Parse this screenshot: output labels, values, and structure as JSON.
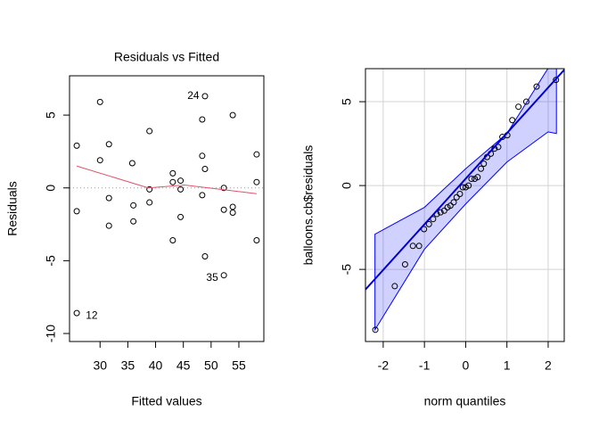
{
  "chart_data": [
    {
      "type": "scatter",
      "title": "Residuals vs Fitted",
      "x_label": "Fitted values",
      "y_label": "Residuals",
      "xlim": [
        24.5,
        59.5
      ],
      "ylim": [
        -10.55,
        7.7
      ],
      "xticks": [
        30,
        35,
        40,
        45,
        50,
        55
      ],
      "yticks": [
        5,
        0,
        -5,
        -10
      ],
      "grid": false,
      "reference_line": 0,
      "series": [
        {
          "type": "scatter",
          "color": "#000000",
          "x": [
            25.8,
            25.8,
            25.8,
            30,
            30,
            31.6,
            31.6,
            31.6,
            35.8,
            36,
            36,
            38.9,
            38.9,
            38.9,
            43.1,
            43.1,
            43.1,
            44.5,
            44.5,
            44.5,
            48.4,
            48.4,
            48.4,
            48.9,
            48.9,
            48.9,
            52.3,
            52.3,
            52.3,
            53.9,
            53.9,
            53.9,
            58.2,
            58.2,
            58.2
          ],
          "values": [
            2.9,
            -1.6,
            -8.6,
            5.9,
            1.9,
            3.0,
            -0.7,
            -2.6,
            1.7,
            -1.2,
            -2.3,
            3.9,
            -0.1,
            -1.0,
            1.0,
            0.4,
            -3.6,
            0.5,
            -0.1,
            -2.0,
            4.7,
            2.2,
            -0.5,
            6.3,
            1.3,
            -4.7,
            0.0,
            -1.5,
            -6.0,
            5.0,
            -1.3,
            -1.7,
            2.3,
            0.4,
            -3.6
          ]
        },
        {
          "type": "line",
          "color": "#df536b",
          "x": [
            25.8,
            38.7,
            45.2,
            58.2
          ],
          "values": [
            1.5,
            0.0,
            0.2,
            -0.4
          ]
        }
      ],
      "annotations": [
        {
          "text": "24",
          "x": 46.8,
          "y": 6.3
        },
        {
          "text": "35",
          "x": 50.2,
          "y": -6.2
        },
        {
          "text": "12",
          "x": 28.5,
          "y": -8.8
        }
      ]
    },
    {
      "type": "scatter",
      "x_label": "norm quantiles",
      "y_label": "balloons.cb$residuals",
      "xlim": [
        -2.43,
        2.39
      ],
      "ylim": [
        -9.3,
        6.97
      ],
      "xticks": [
        -2,
        -1,
        0,
        1,
        2
      ],
      "yticks": [
        5,
        0,
        -5
      ],
      "grid": true,
      "band": {
        "color": "#0000ff",
        "x": [
          -2.2,
          -1,
          0,
          1,
          2,
          2.2
        ],
        "upper": [
          -2.9,
          -1.3,
          1.0,
          3.1,
          7.0,
          8.5
        ],
        "lower": [
          -8.6,
          -3.8,
          -1.1,
          1.4,
          3.2,
          3.1
        ]
      },
      "series": [
        {
          "type": "scatter",
          "color": "#000000",
          "x": [
            -2.19,
            -1.72,
            -1.47,
            -1.28,
            -1.13,
            -1.01,
            -0.89,
            -0.79,
            -0.7,
            -0.61,
            -0.52,
            -0.44,
            -0.37,
            -0.29,
            -0.22,
            -0.14,
            -0.07,
            0,
            0.07,
            0.14,
            0.22,
            0.29,
            0.37,
            0.44,
            0.52,
            0.61,
            0.7,
            0.79,
            0.89,
            1.01,
            1.13,
            1.28,
            1.47,
            1.72,
            2.19
          ],
          "values": [
            -8.6,
            -6.0,
            -4.7,
            -3.6,
            -3.6,
            -2.6,
            -2.3,
            -2.0,
            -1.7,
            -1.6,
            -1.5,
            -1.3,
            -1.2,
            -1.0,
            -0.7,
            -0.5,
            -0.1,
            -0.1,
            0.0,
            0.4,
            0.4,
            0.5,
            1.0,
            1.3,
            1.7,
            1.9,
            2.2,
            2.3,
            2.9,
            3.0,
            3.9,
            4.7,
            5.0,
            5.9,
            6.3
          ]
        },
        {
          "type": "line",
          "color": "#0000cd",
          "x": [
            -2.43,
            2.39
          ],
          "values": [
            -6.2,
            6.9
          ]
        }
      ]
    }
  ]
}
